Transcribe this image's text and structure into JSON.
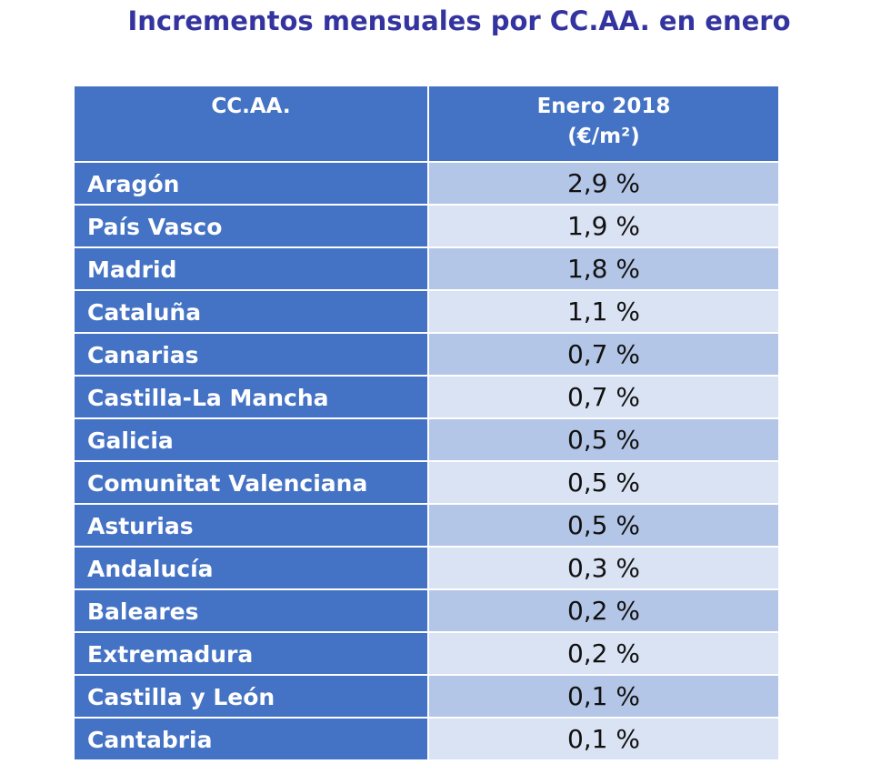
{
  "title": "Incrementos mensuales por CC.AA. en enero",
  "table": {
    "header": {
      "region": "CC.AA.",
      "period": "Enero 2018",
      "unit": "(€/m²)"
    },
    "rows": [
      [
        "Aragón",
        "2,9 %"
      ],
      [
        "País Vasco",
        "1,9 %"
      ],
      [
        "Madrid",
        "1,8 %"
      ],
      [
        "Cataluña",
        "1,1 %"
      ],
      [
        "Canarias",
        "0,7 %"
      ],
      [
        "Castilla-La Mancha",
        "0,7 %"
      ],
      [
        "Galicia",
        "0,5 %"
      ],
      [
        "Comunitat Valenciana",
        "0,5 %"
      ],
      [
        "Asturias",
        "0,5 %"
      ],
      [
        "Andalucía",
        "0,3 %"
      ],
      [
        "Baleares",
        "0,2 %"
      ],
      [
        "Extremadura",
        "0,2 %"
      ],
      [
        "Castilla y León",
        "0,1 %"
      ],
      [
        "Cantabria",
        "0,1 %"
      ]
    ]
  }
}
